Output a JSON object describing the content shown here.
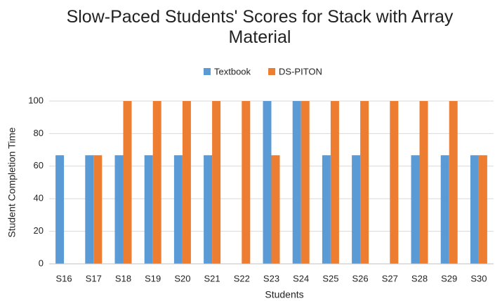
{
  "chart_data": {
    "type": "bar",
    "title": "Slow-Paced Students' Scores for Stack with Array Material",
    "x_label": "Students",
    "y_label": "Student Completion Time",
    "categories": [
      "S16",
      "S17",
      "S18",
      "S19",
      "S20",
      "S21",
      "S22",
      "S23",
      "S24",
      "S25",
      "S26",
      "S27",
      "S28",
      "S29",
      "S30"
    ],
    "series": [
      {
        "name": "Textbook",
        "color": "#5b9bd5",
        "values": [
          66.7,
          66.7,
          66.7,
          66.7,
          66.7,
          66.7,
          0,
          100,
          100,
          66.7,
          66.7,
          0,
          66.7,
          66.7,
          66.7
        ]
      },
      {
        "name": "DS-PITON",
        "color": "#ed7d31",
        "values": [
          0,
          66.7,
          100,
          100,
          100,
          100,
          100,
          66.7,
          100,
          100,
          100,
          100,
          100,
          100,
          66.7
        ]
      }
    ],
    "ylim": [
      0,
      100
    ],
    "yticks": [
      0,
      20,
      40,
      60,
      80,
      100
    ],
    "grid": true,
    "legend": "top"
  }
}
